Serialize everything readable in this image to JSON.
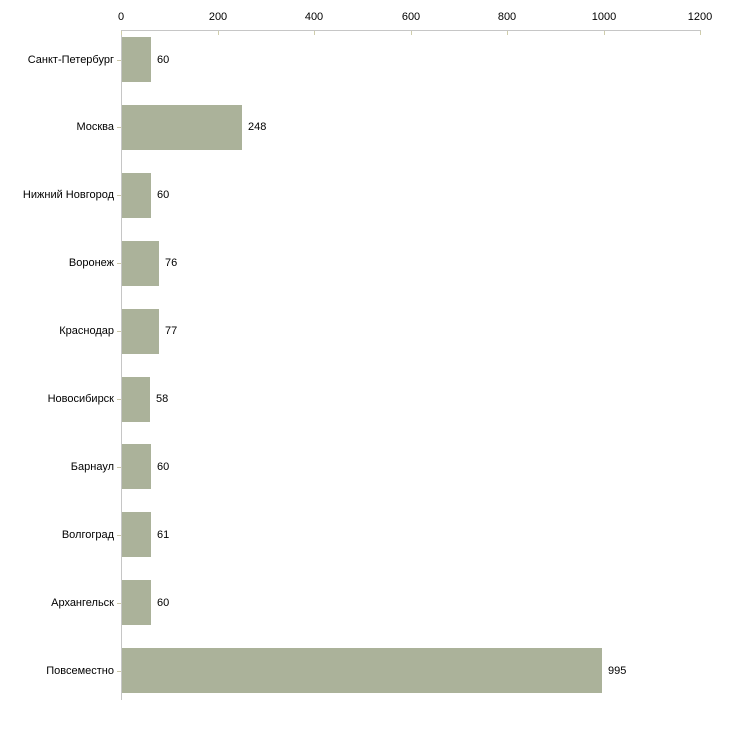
{
  "chart_data": {
    "type": "bar",
    "orientation": "horizontal",
    "title": "",
    "xlabel": "",
    "ylabel": "",
    "categories": [
      "Санкт-Петербург",
      "Москва",
      "Нижний Новгород",
      "Воронеж",
      "Краснодар",
      "Новосибирск",
      "Барнаул",
      "Волгоград",
      "Архангельск",
      "Повсеместно"
    ],
    "values": [
      60,
      248,
      60,
      76,
      77,
      58,
      60,
      61,
      60,
      995
    ],
    "value_labels": [
      "60",
      "248",
      "60",
      "76",
      "77",
      "58",
      "60",
      "61",
      "60",
      "995"
    ],
    "x_ticks": [
      0,
      200,
      400,
      600,
      800,
      1000,
      1200
    ],
    "x_tick_labels": [
      "0",
      "200",
      "400",
      "600",
      "800",
      "1000",
      "1200"
    ],
    "xlim": [
      0,
      1200
    ],
    "axis_position": "top",
    "grid": false,
    "legend": null,
    "bar_color": "#abb29a",
    "axis_color": "#c6c6c6",
    "tick_color": "#cfcdab",
    "text_color": "#000000",
    "background_color": "#ffffff"
  }
}
